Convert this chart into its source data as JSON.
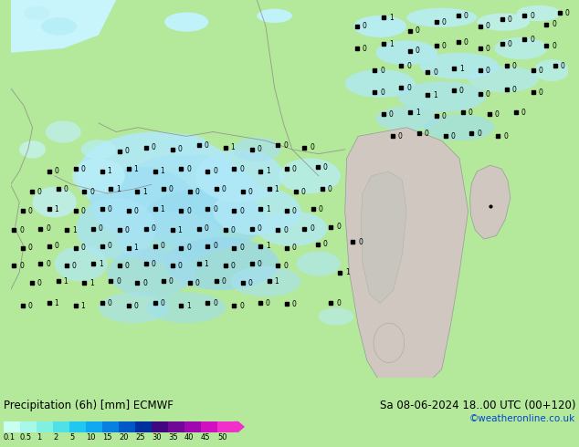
{
  "title": "Precipitation (6h) [mm] ECMWF",
  "subtitle": "Sa 08-06-2024 18..00 UTC (00+120)",
  "credit": "©weatheronline.co.uk",
  "cb_colors": [
    "#c8fff0",
    "#a8f8e8",
    "#80f0e0",
    "#50e0e8",
    "#20c8f0",
    "#10a8f0",
    "#0880e0",
    "#0058c8",
    "#0030a0",
    "#400880",
    "#700898",
    "#a008b0",
    "#d010c0",
    "#f030c8"
  ],
  "cb_labels": [
    "0.1",
    "0.5",
    "1",
    "2",
    "5",
    "10",
    "15",
    "20",
    "25",
    "30",
    "35",
    "40",
    "45",
    "50"
  ],
  "land_green": "#b4e89a",
  "sea_cyan": "#c0f0f8",
  "precip_light": "#b0eeff",
  "precip_mid": "#80d8f8",
  "gray_region": "#d8d0c8",
  "border_color": "#888888",
  "bottom_bg": "#c8eaaa",
  "title_color": "#000000",
  "subtitle_color": "#000000",
  "credit_color": "#0044cc",
  "fig_width": 6.34,
  "fig_height": 4.9
}
